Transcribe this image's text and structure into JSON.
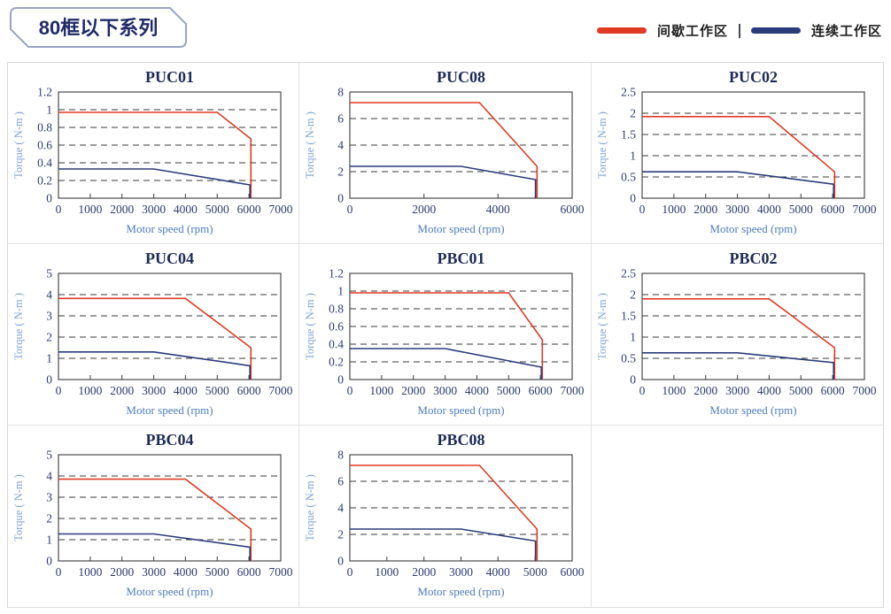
{
  "page": {
    "title_badge": "80框以下系列"
  },
  "legend": {
    "items": [
      {
        "label": "间歇工作区",
        "color": "#e03a22"
      },
      {
        "label": "连续工作区",
        "color": "#2a3b7a"
      }
    ]
  },
  "axis": {
    "x_label": "Motor speed (rpm)",
    "y_label": "Torque ( N-m )"
  },
  "colors": {
    "intermittent_line": "#e03a22",
    "continuous_line": "#2a3b7a",
    "grid_dash": "#3a3a3a",
    "tick_label": "#2e3b70",
    "title": "#1d2b57",
    "badge_border": "#9aa3c1",
    "badge_text": "#1f2a66",
    "panel_border": "#d9d9d9"
  },
  "chart_data": [
    {
      "type": "line",
      "title": "PUC01",
      "xlabel": "Motor speed (rpm)",
      "ylabel": "Torque ( N-m )",
      "xlim": [
        0,
        7000
      ],
      "xtick_step": 1000,
      "ylim": [
        0,
        1.2
      ],
      "ytick_step": 0.2,
      "series": [
        {
          "name": "间歇工作区",
          "color": "#e03a22",
          "points": [
            [
              0,
              0.97
            ],
            [
              5000,
              0.97
            ],
            [
              6060,
              0.67
            ],
            [
              6060,
              0
            ]
          ]
        },
        {
          "name": "连续工作区",
          "color": "#2a3b7a",
          "points": [
            [
              0,
              0.33
            ],
            [
              3000,
              0.33
            ],
            [
              6030,
              0.15
            ],
            [
              6030,
              0
            ]
          ]
        }
      ]
    },
    {
      "type": "line",
      "title": "PUC08",
      "xlabel": "Motor speed (rpm)",
      "ylabel": "Torque ( N-m )",
      "xlim": [
        0,
        6000
      ],
      "xtick_step": 2000,
      "ylim": [
        0,
        8
      ],
      "ytick_step": 2,
      "series": [
        {
          "name": "间歇工作区",
          "color": "#e03a22",
          "points": [
            [
              0,
              7.2
            ],
            [
              3500,
              7.2
            ],
            [
              5050,
              2.4
            ],
            [
              5050,
              0
            ]
          ]
        },
        {
          "name": "连续工作区",
          "color": "#2a3b7a",
          "points": [
            [
              0,
              2.4
            ],
            [
              3000,
              2.4
            ],
            [
              5010,
              1.4
            ],
            [
              5010,
              0
            ]
          ]
        }
      ]
    },
    {
      "type": "line",
      "title": "PUC02",
      "xlabel": "Motor speed (rpm)",
      "ylabel": "Torque ( N-m )",
      "xlim": [
        0,
        7000
      ],
      "xtick_step": 1000,
      "ylim": [
        0,
        2.5
      ],
      "ytick_step": 0.5,
      "series": [
        {
          "name": "间歇工作区",
          "color": "#e03a22",
          "points": [
            [
              0,
              1.92
            ],
            [
              4000,
              1.92
            ],
            [
              6060,
              0.62
            ],
            [
              6060,
              0
            ]
          ]
        },
        {
          "name": "连续工作区",
          "color": "#2a3b7a",
          "points": [
            [
              0,
              0.62
            ],
            [
              3000,
              0.62
            ],
            [
              6030,
              0.33
            ],
            [
              6030,
              0
            ]
          ]
        }
      ]
    },
    {
      "type": "line",
      "title": "PUC04",
      "xlabel": "Motor speed (rpm)",
      "ylabel": "Torque ( N-m )",
      "xlim": [
        0,
        7000
      ],
      "xtick_step": 1000,
      "ylim": [
        0,
        5
      ],
      "ytick_step": 1,
      "series": [
        {
          "name": "间歇工作区",
          "color": "#e03a22",
          "points": [
            [
              0,
              3.82
            ],
            [
              4000,
              3.82
            ],
            [
              6060,
              1.5
            ],
            [
              6060,
              0
            ]
          ]
        },
        {
          "name": "连续工作区",
          "color": "#2a3b7a",
          "points": [
            [
              0,
              1.3
            ],
            [
              3000,
              1.3
            ],
            [
              6030,
              0.65
            ],
            [
              6030,
              0
            ]
          ]
        }
      ]
    },
    {
      "type": "line",
      "title": "PBC01",
      "xlabel": "Motor speed (rpm)",
      "ylabel": "Torque ( N-m )",
      "xlim": [
        0,
        7000
      ],
      "xtick_step": 1000,
      "ylim": [
        0,
        1.2
      ],
      "ytick_step": 0.2,
      "series": [
        {
          "name": "间歇工作区",
          "color": "#e03a22",
          "points": [
            [
              0,
              0.98
            ],
            [
              5000,
              0.98
            ],
            [
              6060,
              0.45
            ],
            [
              6060,
              0
            ]
          ]
        },
        {
          "name": "连续工作区",
          "color": "#2a3b7a",
          "points": [
            [
              0,
              0.35
            ],
            [
              3000,
              0.35
            ],
            [
              6030,
              0.14
            ],
            [
              6030,
              0
            ]
          ]
        }
      ]
    },
    {
      "type": "line",
      "title": "PBC02",
      "xlabel": "Motor speed (rpm)",
      "ylabel": "Torque ( N-m )",
      "xlim": [
        0,
        7000
      ],
      "xtick_step": 1000,
      "ylim": [
        0,
        2.5
      ],
      "ytick_step": 0.5,
      "series": [
        {
          "name": "间歇工作区",
          "color": "#e03a22",
          "points": [
            [
              0,
              1.9
            ],
            [
              4000,
              1.9
            ],
            [
              6060,
              0.75
            ],
            [
              6060,
              0
            ]
          ]
        },
        {
          "name": "连续工作区",
          "color": "#2a3b7a",
          "points": [
            [
              0,
              0.63
            ],
            [
              3000,
              0.63
            ],
            [
              6030,
              0.4
            ],
            [
              6030,
              0
            ]
          ]
        }
      ]
    },
    {
      "type": "line",
      "title": "PBC04",
      "xlabel": "Motor speed (rpm)",
      "ylabel": "Torque ( N-m )",
      "xlim": [
        0,
        7000
      ],
      "xtick_step": 1000,
      "ylim": [
        0,
        5
      ],
      "ytick_step": 1,
      "series": [
        {
          "name": "间歇工作区",
          "color": "#e03a22",
          "points": [
            [
              0,
              3.85
            ],
            [
              4000,
              3.85
            ],
            [
              6060,
              1.5
            ],
            [
              6060,
              0
            ]
          ]
        },
        {
          "name": "连续工作区",
          "color": "#2a3b7a",
          "points": [
            [
              0,
              1.27
            ],
            [
              3000,
              1.27
            ],
            [
              6030,
              0.65
            ],
            [
              6030,
              0
            ]
          ]
        }
      ]
    },
    {
      "type": "line",
      "title": "PBC08",
      "xlabel": "Motor speed (rpm)",
      "ylabel": "Torque ( N-m )",
      "xlim": [
        0,
        6000
      ],
      "xtick_step": 1000,
      "ylim": [
        0,
        8
      ],
      "ytick_step": 2,
      "series": [
        {
          "name": "间歇工作区",
          "color": "#e03a22",
          "points": [
            [
              0,
              7.2
            ],
            [
              3500,
              7.2
            ],
            [
              5050,
              2.4
            ],
            [
              5050,
              0
            ]
          ]
        },
        {
          "name": "连续工作区",
          "color": "#2a3b7a",
          "points": [
            [
              0,
              2.4
            ],
            [
              3000,
              2.4
            ],
            [
              5010,
              1.5
            ],
            [
              5010,
              0
            ]
          ]
        }
      ]
    }
  ]
}
